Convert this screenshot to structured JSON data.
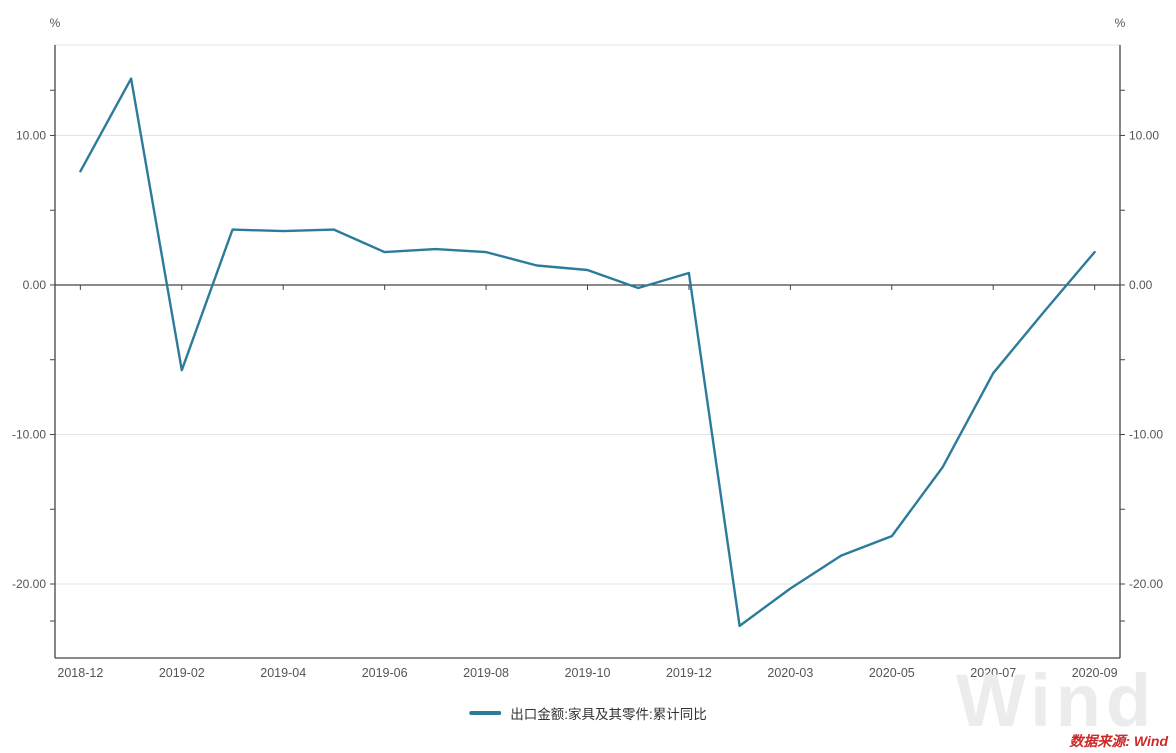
{
  "chart_data": {
    "type": "line",
    "title": "",
    "unit": "%",
    "x": [
      "2018-12",
      "2019-01",
      "2019-02",
      "2019-03",
      "2019-04",
      "2019-05",
      "2019-06",
      "2019-07",
      "2019-08",
      "2019-09",
      "2019-10",
      "2019-11",
      "2019-12",
      "2020-02",
      "2020-03",
      "2020-04",
      "2020-05",
      "2020-06",
      "2020-07",
      "2020-08",
      "2020-09"
    ],
    "series": [
      {
        "name": "出口金额:家具及其零件:累计同比",
        "values": [
          7.6,
          13.8,
          -5.7,
          3.7,
          3.6,
          3.7,
          2.2,
          2.4,
          2.2,
          1.3,
          1.0,
          -0.2,
          0.8,
          -22.8,
          -20.3,
          -18.1,
          -16.8,
          -12.2,
          -5.9,
          -1.8,
          2.2
        ]
      }
    ],
    "x_tick_labels": [
      "2018-12",
      "2019-02",
      "2019-04",
      "2019-06",
      "2019-08",
      "2019-10",
      "2019-12",
      "2020-03",
      "2020-05",
      "2020-07",
      "2020-09"
    ],
    "y_ticks": [
      10,
      0,
      -10,
      -20
    ],
    "y_tick_labels": [
      "10.00",
      "0.00",
      "-10.00",
      "-20.00"
    ],
    "ylim": [
      -24.95,
      16.05
    ],
    "grid": true,
    "legend_position": "bottom",
    "colors": {
      "line": "#2d7b9b",
      "axis": "#444444",
      "grid": "#e3e3e3",
      "tick_text": "#555555"
    }
  },
  "axis_units": {
    "left": "%",
    "right": "%"
  },
  "legend": {
    "label": "出口金额:家具及其零件:累计同比"
  },
  "source": {
    "text": "数据来源: Wind",
    "color": "#ce2929"
  },
  "watermark": {
    "text": "Wind"
  }
}
